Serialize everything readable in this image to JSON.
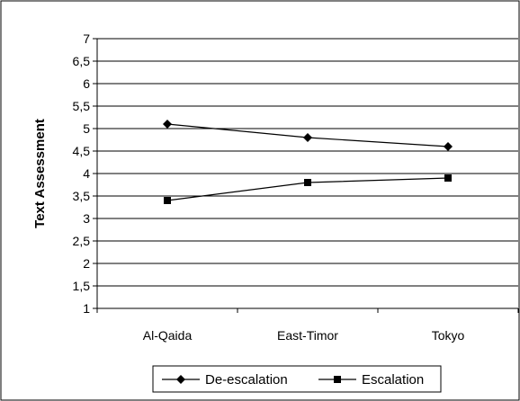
{
  "chart_data": {
    "type": "line",
    "title": "",
    "xlabel": "",
    "ylabel": "Text Assessment",
    "categories": [
      "Al-Qaida",
      "East-Timor",
      "Tokyo"
    ],
    "ylim": [
      1,
      7
    ],
    "yticks": [
      "1",
      "1,5",
      "2",
      "2,5",
      "3",
      "3,5",
      "4",
      "4,5",
      "5",
      "5,5",
      "6",
      "6,5",
      "7"
    ],
    "grid": true,
    "legend_position": "bottom",
    "series": [
      {
        "name": "De-escalation",
        "marker": "diamond",
        "color": "#000000",
        "values": [
          5.1,
          4.8,
          4.6
        ]
      },
      {
        "name": "Escalation",
        "marker": "square",
        "color": "#000000",
        "values": [
          3.4,
          3.8,
          3.9
        ]
      }
    ]
  }
}
